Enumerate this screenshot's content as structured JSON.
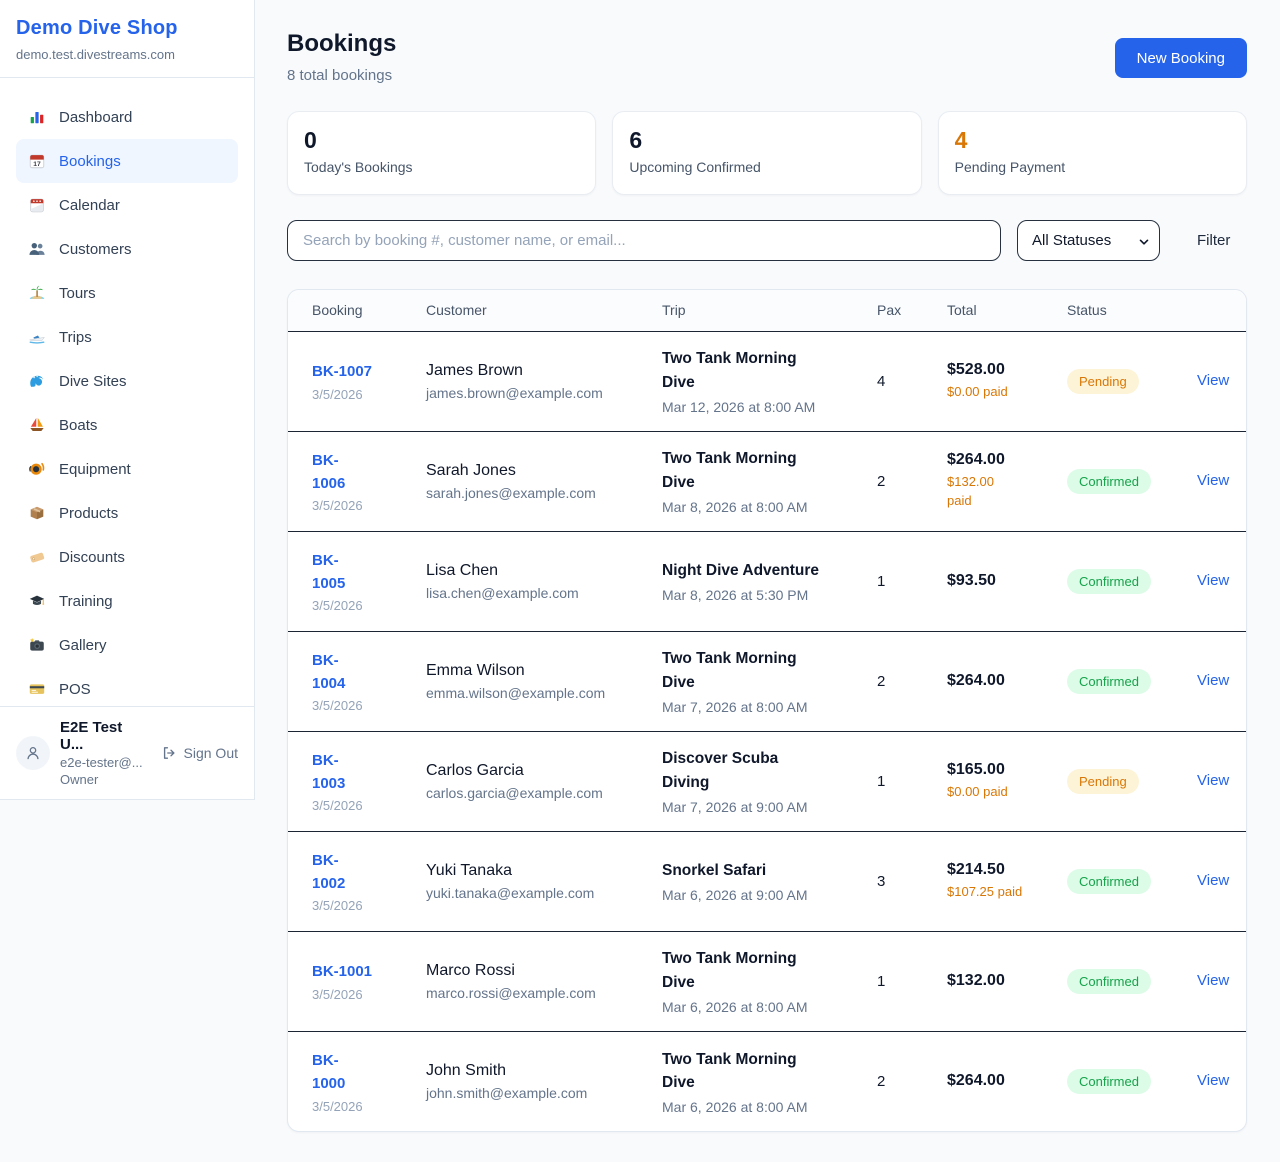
{
  "theme": {
    "accent": "#2563eb",
    "orange": "#d97706",
    "green": "#16a34a",
    "pending_bg": "#fdf4d7",
    "confirmed_bg": "#dcfce7"
  },
  "sidebar": {
    "title": "Demo Dive Shop",
    "domain": "demo.test.divestreams.com",
    "items": [
      {
        "icon": "bar-chart-icon",
        "label": "Dashboard",
        "active": false
      },
      {
        "icon": "calendar-date-icon",
        "label": "Bookings",
        "active": true
      },
      {
        "icon": "calendar-icon",
        "label": "Calendar",
        "active": false
      },
      {
        "icon": "users-icon",
        "label": "Customers",
        "active": false
      },
      {
        "icon": "island-icon",
        "label": "Tours",
        "active": false
      },
      {
        "icon": "speedboat-icon",
        "label": "Trips",
        "active": false
      },
      {
        "icon": "wave-icon",
        "label": "Dive Sites",
        "active": false
      },
      {
        "icon": "sailboat-icon",
        "label": "Boats",
        "active": false
      },
      {
        "icon": "diving-mask-icon",
        "label": "Equipment",
        "active": false
      },
      {
        "icon": "package-icon",
        "label": "Products",
        "active": false
      },
      {
        "icon": "label-icon",
        "label": "Discounts",
        "active": false
      },
      {
        "icon": "graduation-cap-icon",
        "label": "Training",
        "active": false
      },
      {
        "icon": "camera-icon",
        "label": "Gallery",
        "active": false
      },
      {
        "icon": "credit-card-icon",
        "label": "POS",
        "active": false
      }
    ],
    "user": {
      "name": "E2E Test U...",
      "email": "e2e-tester@...",
      "role": "Owner",
      "signout_label": "Sign Out"
    }
  },
  "header": {
    "title": "Bookings",
    "subtitle": "8 total bookings",
    "new_booking_label": "New Booking"
  },
  "stats": [
    {
      "value": "0",
      "label": "Today's Bookings"
    },
    {
      "value": "6",
      "label": "Upcoming Confirmed"
    },
    {
      "value": "4",
      "label": "Pending Payment",
      "accent": "orange"
    }
  ],
  "filters": {
    "search_placeholder": "Search by booking #, customer name, or email...",
    "status_selected": "All Statuses",
    "filter_label": "Filter"
  },
  "table": {
    "columns": [
      "Booking",
      "Customer",
      "Trip",
      "Pax",
      "Total",
      "Status"
    ],
    "rows": [
      {
        "id": "BK-1007",
        "date": "3/5/2026",
        "name": "James Brown",
        "email": "james.brown@example.com",
        "trip": "Two Tank Morning\nDive",
        "trip_date": "Mar 12, 2026 at 8:00 AM",
        "pax": "4",
        "total": "$528.00",
        "paid": "$0.00 paid",
        "status": "Pending",
        "action": "View"
      },
      {
        "id": "BK-\n1006",
        "date": "3/5/2026",
        "name": "Sarah Jones",
        "email": "sarah.jones@example.com",
        "trip": "Two Tank Morning\nDive",
        "trip_date": "Mar 8, 2026 at 8:00 AM",
        "pax": "2",
        "total": "$264.00",
        "paid": "$132.00\npaid",
        "status": "Confirmed",
        "action": "View"
      },
      {
        "id": "BK-\n1005",
        "date": "3/5/2026",
        "name": "Lisa Chen",
        "email": "lisa.chen@example.com",
        "trip": "Night Dive Adventure",
        "trip_date": "Mar 8, 2026 at 5:30 PM",
        "pax": "1",
        "total": "$93.50",
        "status": "Confirmed",
        "action": "View"
      },
      {
        "id": "BK-\n1004",
        "date": "3/5/2026",
        "name": "Emma Wilson",
        "email": "emma.wilson@example.com",
        "trip": "Two Tank Morning\nDive",
        "trip_date": "Mar 7, 2026 at 8:00 AM",
        "pax": "2",
        "total": "$264.00",
        "status": "Confirmed",
        "action": "View"
      },
      {
        "id": "BK-\n1003",
        "date": "3/5/2026",
        "name": "Carlos Garcia",
        "email": "carlos.garcia@example.com",
        "trip": "Discover Scuba\nDiving",
        "trip_date": "Mar 7, 2026 at 9:00 AM",
        "pax": "1",
        "total": "$165.00",
        "paid": "$0.00 paid",
        "status": "Pending",
        "action": "View"
      },
      {
        "id": "BK-\n1002",
        "date": "3/5/2026",
        "name": "Yuki Tanaka",
        "email": "yuki.tanaka@example.com",
        "trip": "Snorkel Safari",
        "trip_date": "Mar 6, 2026 at 9:00 AM",
        "pax": "3",
        "total": "$214.50",
        "paid": "$107.25 paid",
        "status": "Confirmed",
        "action": "View"
      },
      {
        "id": "BK-1001",
        "date": "3/5/2026",
        "name": "Marco Rossi",
        "email": "marco.rossi@example.com",
        "trip": "Two Tank Morning\nDive",
        "trip_date": "Mar 6, 2026 at 8:00 AM",
        "pax": "1",
        "total": "$132.00",
        "status": "Confirmed",
        "action": "View"
      },
      {
        "id": "BK-\n1000",
        "date": "3/5/2026",
        "name": "John Smith",
        "email": "john.smith@example.com",
        "trip": "Two Tank Morning\nDive",
        "trip_date": "Mar 6, 2026 at 8:00 AM",
        "pax": "2",
        "total": "$264.00",
        "status": "Confirmed",
        "action": "View"
      }
    ]
  }
}
